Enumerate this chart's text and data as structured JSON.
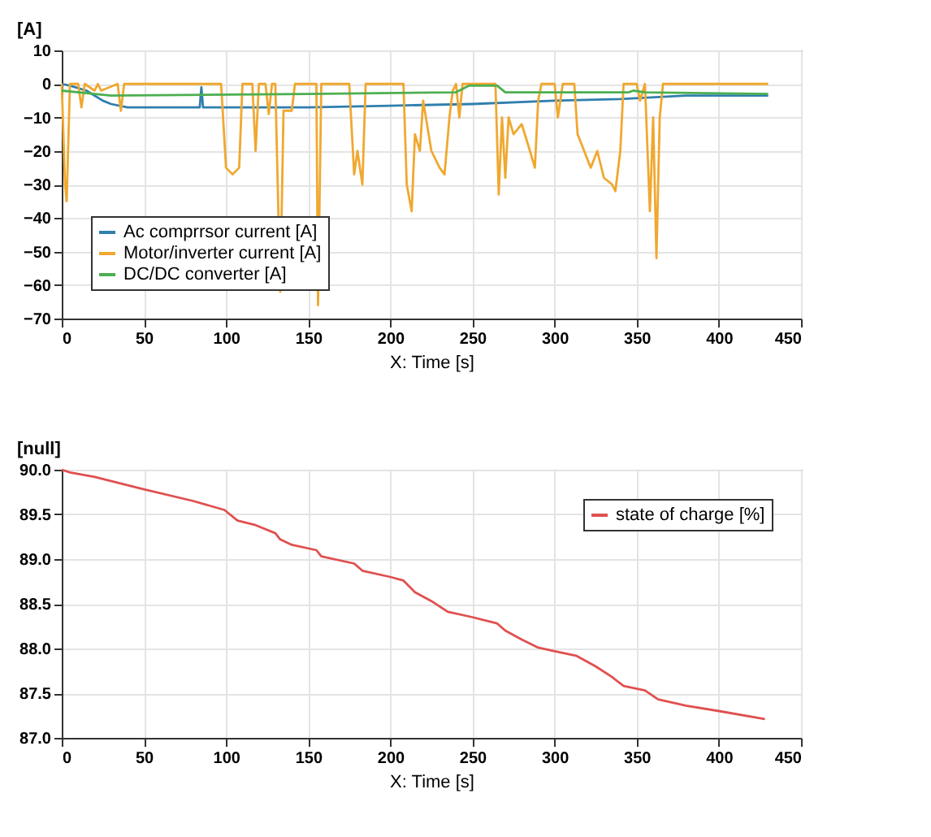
{
  "chart_data": [
    {
      "type": "line",
      "xlabel": "X: Time [s]",
      "ylabel": "[A]",
      "xlim": [
        0,
        450
      ],
      "xticks": [
        0,
        50,
        100,
        150,
        200,
        250,
        300,
        350,
        400,
        450
      ],
      "ylim": [
        -70,
        10
      ],
      "yticks": [
        -70,
        -60,
        -50,
        -40,
        -30,
        -20,
        -10,
        0,
        10
      ],
      "grid": true,
      "legend": "bottom left",
      "series": [
        {
          "name": "Ac comprrsor current [A]",
          "color": "#2f7fae",
          "x": [
            0,
            5,
            15,
            25,
            30,
            40,
            84,
            85,
            86,
            150,
            200,
            250,
            300,
            340,
            380,
            430
          ],
          "values": [
            0,
            -0.5,
            -2,
            -5,
            -6,
            -7,
            -7,
            -1,
            -7,
            -7,
            -6.5,
            -6,
            -5,
            -4.5,
            -3.5,
            -3.5
          ]
        },
        {
          "name": "Motor/inverter current [A]",
          "color": "#f0a830",
          "x": [
            0,
            2,
            3,
            5,
            10,
            12,
            14,
            20,
            22,
            24,
            34,
            36,
            38,
            97,
            100,
            104,
            108,
            110,
            116,
            118,
            120,
            124,
            126,
            128,
            130,
            133,
            135,
            140,
            142,
            155,
            156,
            158,
            175,
            178,
            180,
            183,
            185,
            208,
            210,
            213,
            215,
            218,
            220,
            225,
            230,
            233,
            236,
            238,
            240,
            242,
            244,
            264,
            266,
            268,
            270,
            272,
            275,
            280,
            285,
            288,
            290,
            292,
            300,
            302,
            305,
            312,
            314,
            318,
            322,
            326,
            330,
            335,
            337,
            340,
            342,
            350,
            352,
            355,
            358,
            360,
            362,
            364,
            366,
            430
          ],
          "values": [
            0,
            -30,
            -35,
            0,
            0,
            -7,
            0,
            -2,
            0,
            -2,
            0,
            -8,
            0,
            0,
            -25,
            -27,
            -25,
            0,
            0,
            -20,
            0,
            0,
            -9,
            0,
            0,
            -62,
            -8,
            -8,
            0,
            0,
            -66,
            0,
            0,
            -27,
            -20,
            -30,
            0,
            0,
            -30,
            -38,
            -15,
            -20,
            -5,
            -20,
            -25,
            -27,
            -10,
            -2,
            0,
            -10,
            0,
            0,
            -33,
            -10,
            -28,
            -10,
            -15,
            -12,
            -20,
            -25,
            -5,
            0,
            0,
            -10,
            0,
            0,
            -15,
            -20,
            -25,
            -20,
            -28,
            -30,
            -32,
            -20,
            0,
            0,
            -5,
            0,
            -38,
            -10,
            -52,
            -10,
            0,
            0
          ]
        },
        {
          "name": "DC/DC converter [A]",
          "color": "#4caf50",
          "x": [
            0,
            20,
            30,
            150,
            240,
            248,
            265,
            270,
            345,
            348,
            355,
            430
          ],
          "values": [
            -2,
            -3,
            -3.5,
            -3,
            -2.5,
            -0.5,
            -0.5,
            -2.5,
            -2.5,
            -2,
            -2.5,
            -3
          ]
        }
      ]
    },
    {
      "type": "line",
      "xlabel": "X: Time [s]",
      "ylabel": "[null]",
      "xlim": [
        0,
        450
      ],
      "xticks": [
        0,
        50,
        100,
        150,
        200,
        250,
        300,
        350,
        400,
        450
      ],
      "ylim": [
        87,
        90
      ],
      "yticks": [
        {
          "value": 87,
          "label": "87.0"
        },
        87.5,
        {
          "value": 88,
          "label": "88.0"
        },
        88.5,
        {
          "value": 89,
          "label": "89.0"
        },
        89.5,
        {
          "value": 90,
          "label": "90.0"
        }
      ],
      "grid": true,
      "legend": "top right",
      "series": [
        {
          "name": "state of charge [%]",
          "color": "#e05050",
          "x": [
            0,
            5,
            20,
            50,
            80,
            99,
            107,
            118,
            130,
            133,
            140,
            155,
            158,
            178,
            183,
            200,
            208,
            215,
            225,
            235,
            250,
            265,
            270,
            280,
            290,
            300,
            313,
            325,
            335,
            342,
            355,
            363,
            380,
            400,
            428
          ],
          "values": [
            90.0,
            89.97,
            89.92,
            89.78,
            89.65,
            89.55,
            89.43,
            89.38,
            89.29,
            89.22,
            89.16,
            89.1,
            89.03,
            88.95,
            88.87,
            88.8,
            88.76,
            88.63,
            88.53,
            88.41,
            88.35,
            88.28,
            88.2,
            88.1,
            88.01,
            87.97,
            87.92,
            87.8,
            87.68,
            87.58,
            87.53,
            87.43,
            87.36,
            87.3,
            87.21
          ]
        }
      ]
    }
  ]
}
